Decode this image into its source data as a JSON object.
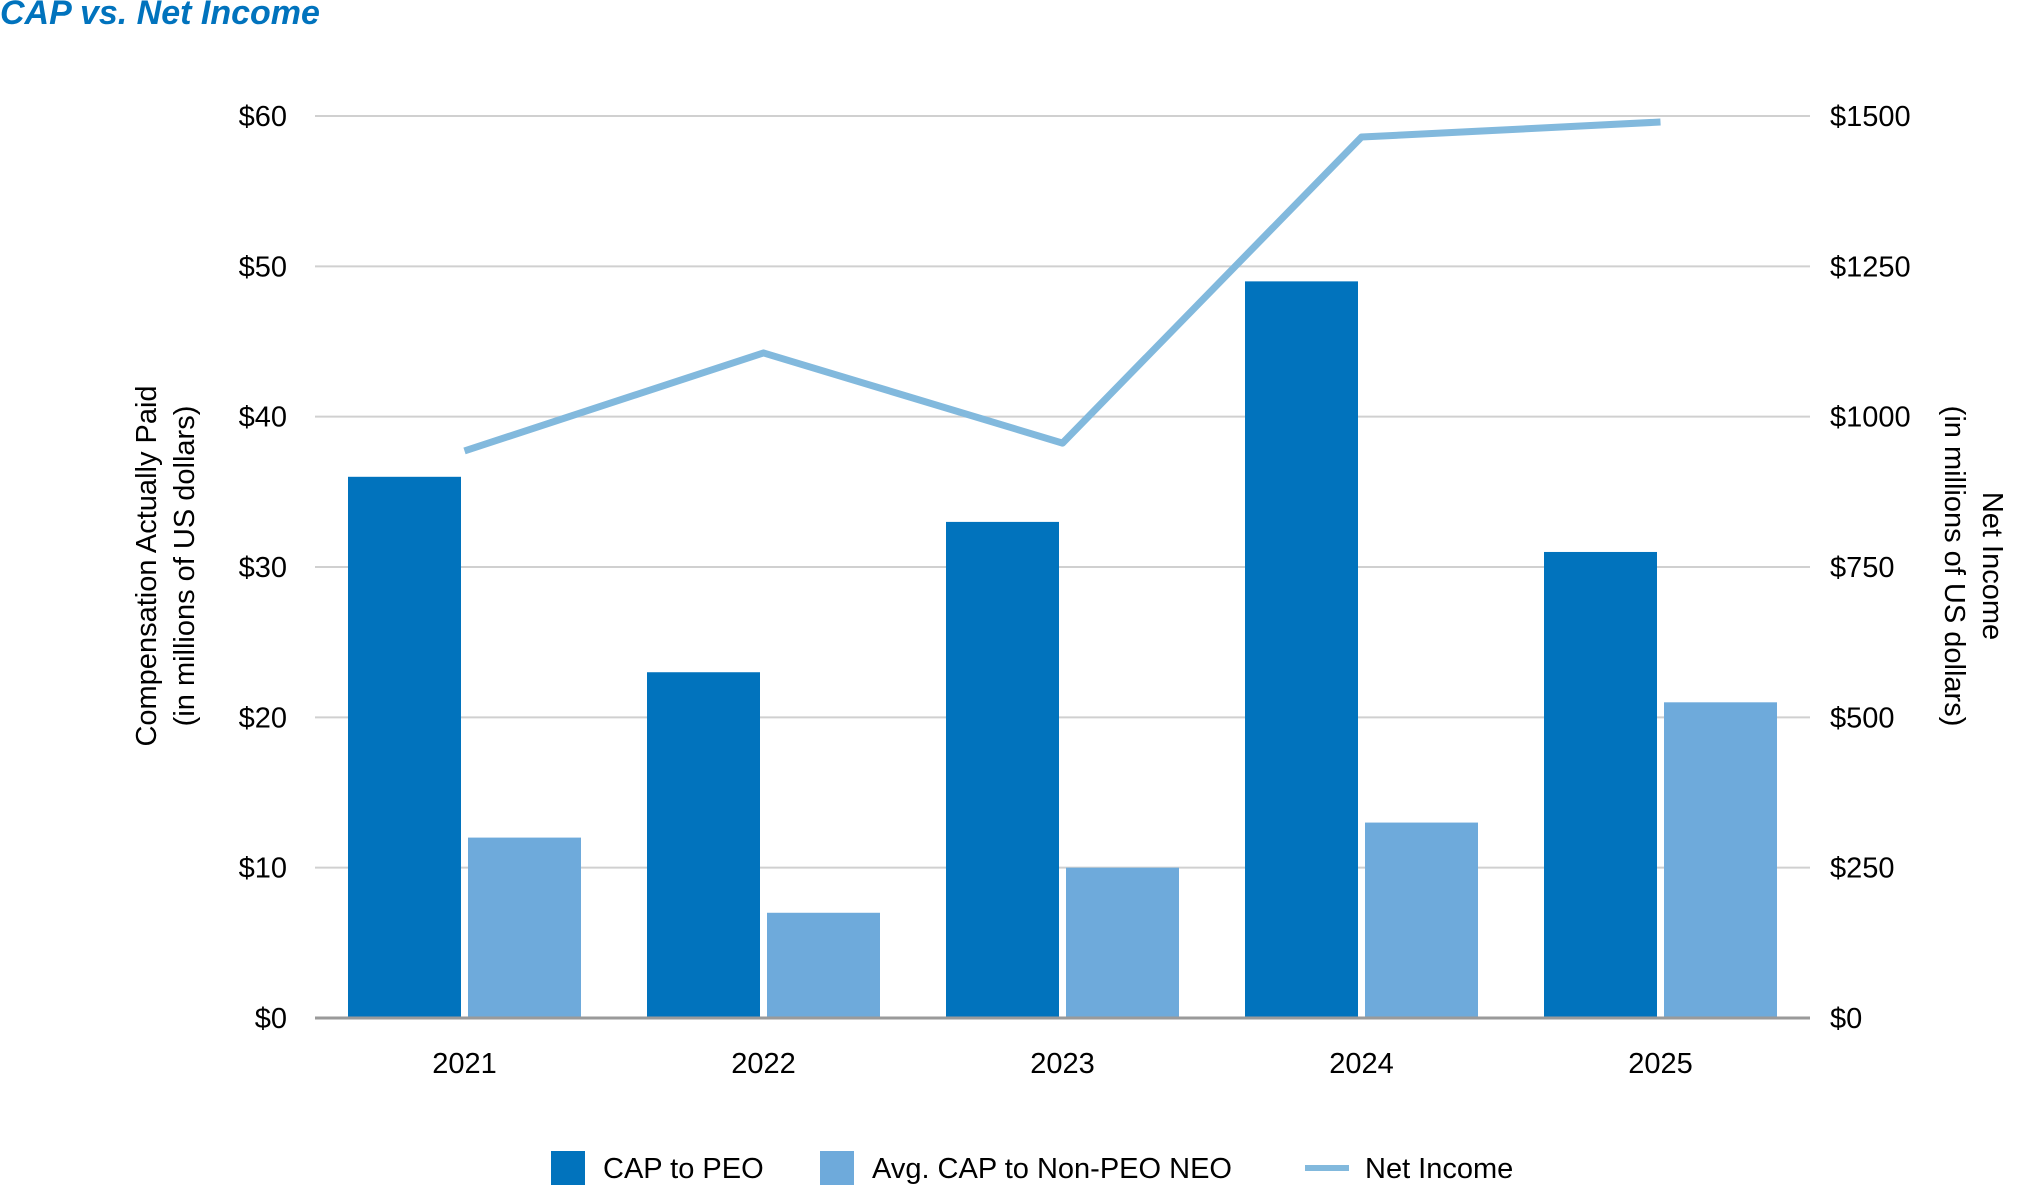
{
  "chart_data": {
    "type": "bar",
    "title": "CAP vs. Net Income",
    "categories": [
      "2021",
      "2022",
      "2023",
      "2024",
      "2025"
    ],
    "series": [
      {
        "name": "CAP to PEO",
        "kind": "bar",
        "axis": "left",
        "color": "#0173bd",
        "values": [
          36,
          23,
          33,
          49,
          31
        ]
      },
      {
        "name": "Avg. CAP to Non-PEO NEO",
        "kind": "bar",
        "axis": "left",
        "color": "#6eaadb",
        "values": [
          12,
          7,
          10,
          13,
          21
        ]
      },
      {
        "name": "Net Income",
        "kind": "line",
        "axis": "right",
        "color": "#82b9dd",
        "values": [
          943,
          1106,
          956,
          1465,
          1490
        ]
      }
    ],
    "y_left": {
      "label_line1": "Compensation Actually Paid",
      "label_line2": "(in millions of US dollars)",
      "ylim": [
        0,
        60
      ],
      "ticks": [
        0,
        10,
        20,
        30,
        40,
        50,
        60
      ],
      "tick_labels": [
        "$0",
        "$10",
        "$20",
        "$30",
        "$40",
        "$50",
        "$60"
      ]
    },
    "y_right": {
      "label_line1": "Net Income",
      "label_line2": "(in millions of US dollars)",
      "ylim": [
        0,
        1500
      ],
      "ticks": [
        0,
        250,
        500,
        750,
        1000,
        1250,
        1500
      ],
      "tick_labels": [
        "$0",
        "$250",
        "$500",
        "$750",
        "$1000",
        "$1250",
        "$1500"
      ]
    },
    "grid": true,
    "legend": {
      "position": "bottom",
      "items": [
        "CAP to PEO",
        "Avg. CAP to Non-PEO NEO",
        "Net Income"
      ]
    }
  }
}
